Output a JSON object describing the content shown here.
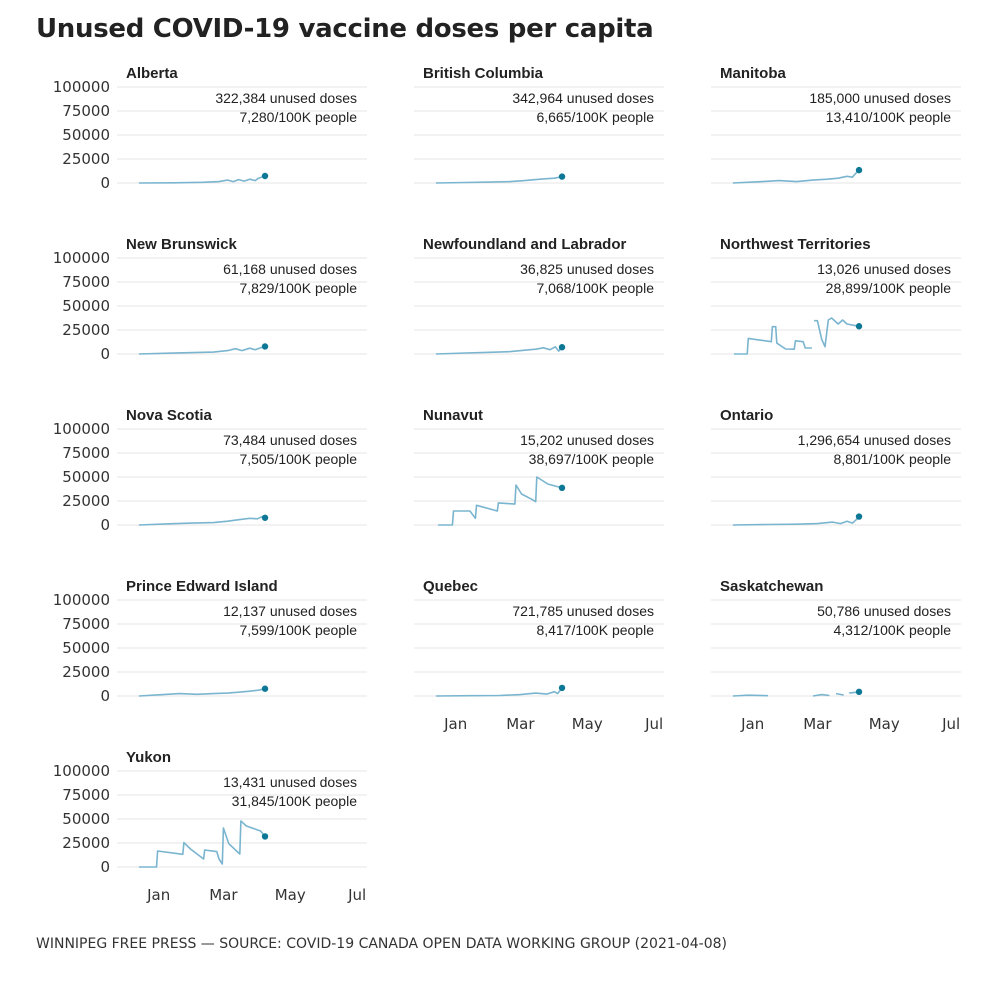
{
  "title": "Unused COVID-19 vaccine doses per capita",
  "footer": "WINNIPEG FREE PRESS — SOURCE: COVID-19 CANADA OPEN DATA WORKING GROUP (2021-04-08)",
  "colors": {
    "line": "#7ab5cf",
    "dot": "#0d7895",
    "grid": "#e6e6e6"
  },
  "chart_data": {
    "type": "line",
    "layout": "small-multiples",
    "ylim": [
      0,
      100000
    ],
    "yticks": [
      "0",
      "25000",
      "50000",
      "75000",
      "100000"
    ],
    "ytick_values": [
      0,
      25000,
      50000,
      75000,
      100000
    ],
    "xlim": [
      "2020-11-24",
      "2021-07-10"
    ],
    "xticks": [
      {
        "label": "Jan",
        "date": "2021-01-01"
      },
      {
        "label": "Mar",
        "date": "2021-03-01"
      },
      {
        "label": "May",
        "date": "2021-05-01"
      },
      {
        "label": "Jul",
        "date": "2021-07-01"
      }
    ],
    "grid": true,
    "panels": [
      {
        "name": "Alberta",
        "doses": "322,384 unused doses",
        "per_capita": "7,280/100K people",
        "points": [
          [
            "2020-12-14",
            0
          ],
          [
            "2021-01-15",
            200
          ],
          [
            "2021-02-10",
            700
          ],
          [
            "2021-02-25",
            1500
          ],
          [
            "2021-03-05",
            3000
          ],
          [
            "2021-03-10",
            1500
          ],
          [
            "2021-03-15",
            3500
          ],
          [
            "2021-03-20",
            2000
          ],
          [
            "2021-03-25",
            4000
          ],
          [
            "2021-03-30",
            2500
          ],
          [
            "2021-04-02",
            5000
          ],
          [
            "2021-04-08",
            7280
          ]
        ]
      },
      {
        "name": "British Columbia",
        "doses": "342,964 unused doses",
        "per_capita": "6,665/100K people",
        "points": [
          [
            "2020-12-14",
            0
          ],
          [
            "2021-01-10",
            500
          ],
          [
            "2021-02-01",
            900
          ],
          [
            "2021-02-20",
            1500
          ],
          [
            "2021-03-05",
            2500
          ],
          [
            "2021-03-15",
            3500
          ],
          [
            "2021-03-25",
            4500
          ],
          [
            "2021-04-01",
            5000
          ],
          [
            "2021-04-08",
            6665
          ]
        ]
      },
      {
        "name": "Manitoba",
        "doses": "185,000 unused doses",
        "per_capita": "13,410/100K people",
        "points": [
          [
            "2020-12-14",
            0
          ],
          [
            "2021-01-10",
            1500
          ],
          [
            "2021-01-25",
            2500
          ],
          [
            "2021-02-10",
            1500
          ],
          [
            "2021-02-25",
            3000
          ],
          [
            "2021-03-10",
            4000
          ],
          [
            "2021-03-20",
            5000
          ],
          [
            "2021-03-28",
            7000
          ],
          [
            "2021-04-02",
            6000
          ],
          [
            "2021-04-05",
            10000
          ],
          [
            "2021-04-08",
            13410
          ]
        ]
      },
      {
        "name": "New Brunswick",
        "doses": "61,168 unused doses",
        "per_capita": "7,829/100K people",
        "points": [
          [
            "2020-12-14",
            0
          ],
          [
            "2021-01-10",
            800
          ],
          [
            "2021-02-01",
            1500
          ],
          [
            "2021-02-20",
            2000
          ],
          [
            "2021-03-05",
            3500
          ],
          [
            "2021-03-12",
            5500
          ],
          [
            "2021-03-18",
            3500
          ],
          [
            "2021-03-25",
            6000
          ],
          [
            "2021-03-30",
            4500
          ],
          [
            "2021-04-04",
            6500
          ],
          [
            "2021-04-08",
            7829
          ]
        ]
      },
      {
        "name": "Newfoundland and Labrador",
        "doses": "36,825 unused doses",
        "per_capita": "7,068/100K people",
        "points": [
          [
            "2020-12-14",
            0
          ],
          [
            "2021-01-10",
            1000
          ],
          [
            "2021-02-01",
            1800
          ],
          [
            "2021-02-20",
            2500
          ],
          [
            "2021-03-05",
            4000
          ],
          [
            "2021-03-15",
            5000
          ],
          [
            "2021-03-22",
            6500
          ],
          [
            "2021-03-28",
            4500
          ],
          [
            "2021-04-02",
            7500
          ],
          [
            "2021-04-05",
            3000
          ],
          [
            "2021-04-08",
            7068
          ]
        ]
      },
      {
        "name": "Northwest Territories",
        "doses": "13,026 unused doses",
        "per_capita": "28,899/100K people",
        "points": [
          [
            "2020-12-15",
            0
          ],
          [
            "2020-12-27",
            0
          ],
          [
            "2020-12-28",
            16300
          ],
          [
            "2021-01-18",
            12800
          ],
          [
            "2021-01-19",
            28400
          ],
          [
            "2021-01-22",
            28400
          ],
          [
            "2021-01-23",
            11400
          ],
          [
            "2021-01-31",
            5200
          ],
          [
            "2021-02-08",
            5000
          ],
          [
            "2021-02-09",
            13800
          ],
          [
            "2021-02-16",
            12800
          ],
          [
            "2021-02-18",
            6200
          ],
          [
            "2021-02-24",
            6200
          ],
          [
            null,
            null
          ],
          [
            "2021-02-26",
            34700
          ],
          [
            "2021-03-01",
            34700
          ],
          [
            "2021-03-05",
            15300
          ],
          [
            "2021-03-08",
            7600
          ],
          [
            "2021-03-11",
            35400
          ],
          [
            "2021-03-14",
            37500
          ],
          [
            "2021-03-20",
            31200
          ],
          [
            "2021-03-24",
            35400
          ],
          [
            "2021-03-28",
            31200
          ],
          [
            "2021-04-08",
            28899
          ]
        ]
      },
      {
        "name": "Nova Scotia",
        "doses": "73,484 unused doses",
        "per_capita": "7,505/100K people",
        "points": [
          [
            "2020-12-14",
            0
          ],
          [
            "2021-01-10",
            1200
          ],
          [
            "2021-02-01",
            2000
          ],
          [
            "2021-02-20",
            2500
          ],
          [
            "2021-03-05",
            4000
          ],
          [
            "2021-03-15",
            5500
          ],
          [
            "2021-03-25",
            7000
          ],
          [
            "2021-04-01",
            6500
          ],
          [
            "2021-04-05",
            8500
          ],
          [
            "2021-04-08",
            7505
          ]
        ]
      },
      {
        "name": "Nunavut",
        "doses": "15,202 unused doses",
        "per_capita": "38,697/100K people",
        "points": [
          [
            "2020-12-16",
            0
          ],
          [
            "2020-12-29",
            0
          ],
          [
            "2020-12-30",
            14600
          ],
          [
            "2021-01-14",
            14600
          ],
          [
            "2021-01-19",
            7000
          ],
          [
            "2021-01-20",
            20500
          ],
          [
            "2021-02-08",
            14600
          ],
          [
            "2021-02-09",
            23000
          ],
          [
            "2021-02-24",
            21800
          ],
          [
            "2021-02-25",
            41700
          ],
          [
            "2021-03-02",
            32300
          ],
          [
            "2021-03-11",
            27000
          ],
          [
            "2021-03-15",
            24300
          ],
          [
            "2021-03-16",
            50000
          ],
          [
            "2021-03-26",
            42700
          ],
          [
            "2021-04-08",
            38697
          ]
        ]
      },
      {
        "name": "Ontario",
        "doses": "1,296,654 unused doses",
        "per_capita": "8,801/100K people",
        "points": [
          [
            "2020-12-14",
            0
          ],
          [
            "2021-01-15",
            500
          ],
          [
            "2021-02-10",
            800
          ],
          [
            "2021-03-01",
            1500
          ],
          [
            "2021-03-15",
            3000
          ],
          [
            "2021-03-22",
            1500
          ],
          [
            "2021-03-28",
            4000
          ],
          [
            "2021-04-02",
            2000
          ],
          [
            "2021-04-05",
            5000
          ],
          [
            "2021-04-08",
            8801
          ]
        ]
      },
      {
        "name": "Prince Edward Island",
        "doses": "12,137 unused doses",
        "per_capita": "7,599/100K people",
        "points": [
          [
            "2020-12-14",
            0
          ],
          [
            "2021-01-05",
            1500
          ],
          [
            "2021-01-20",
            2500
          ],
          [
            "2021-02-05",
            1800
          ],
          [
            "2021-02-20",
            2500
          ],
          [
            "2021-03-05",
            3000
          ],
          [
            "2021-03-15",
            4000
          ],
          [
            "2021-03-25",
            5000
          ],
          [
            "2021-04-02",
            6000
          ],
          [
            "2021-04-08",
            7599
          ]
        ]
      },
      {
        "name": "Quebec",
        "doses": "721,785 unused doses",
        "per_capita": "8,417/100K people",
        "points": [
          [
            "2020-12-14",
            0
          ],
          [
            "2021-01-15",
            300
          ],
          [
            "2021-02-10",
            500
          ],
          [
            "2021-03-01",
            1500
          ],
          [
            "2021-03-15",
            3000
          ],
          [
            "2021-03-25",
            2000
          ],
          [
            "2021-04-01",
            4500
          ],
          [
            "2021-04-04",
            2500
          ],
          [
            "2021-04-08",
            8417
          ]
        ]
      },
      {
        "name": "Saskatchewan",
        "doses": "50,786 unused doses",
        "per_capita": "4,312/100K people",
        "points": [
          [
            "2020-12-14",
            0
          ],
          [
            "2020-12-28",
            800
          ],
          [
            "2021-01-15",
            300
          ],
          [
            null,
            null
          ],
          [
            "2021-02-25",
            0
          ],
          [
            "2021-03-05",
            1500
          ],
          [
            "2021-03-12",
            500
          ],
          [
            null,
            null
          ],
          [
            "2021-03-18",
            2500
          ],
          [
            "2021-03-25",
            1000
          ],
          [
            null,
            null
          ],
          [
            "2021-03-30",
            3000
          ],
          [
            "2021-04-08",
            4312
          ]
        ]
      },
      {
        "name": "Yukon",
        "doses": "13,431 unused doses",
        "per_capita": "31,845/100K people",
        "points": [
          [
            "2020-12-14",
            0
          ],
          [
            "2020-12-30",
            0
          ],
          [
            "2020-12-31",
            16700
          ],
          [
            "2021-01-23",
            13200
          ],
          [
            "2021-01-24",
            25400
          ],
          [
            "2021-01-30",
            18800
          ],
          [
            "2021-02-11",
            8300
          ],
          [
            "2021-02-12",
            17700
          ],
          [
            "2021-02-23",
            16000
          ],
          [
            "2021-02-25",
            8300
          ],
          [
            "2021-02-28",
            3100
          ],
          [
            "2021-03-01",
            40600
          ],
          [
            "2021-03-06",
            24300
          ],
          [
            "2021-03-16",
            13500
          ],
          [
            "2021-03-17",
            48000
          ],
          [
            "2021-03-22",
            42700
          ],
          [
            "2021-04-04",
            37500
          ],
          [
            "2021-04-08",
            31845
          ]
        ]
      }
    ]
  }
}
